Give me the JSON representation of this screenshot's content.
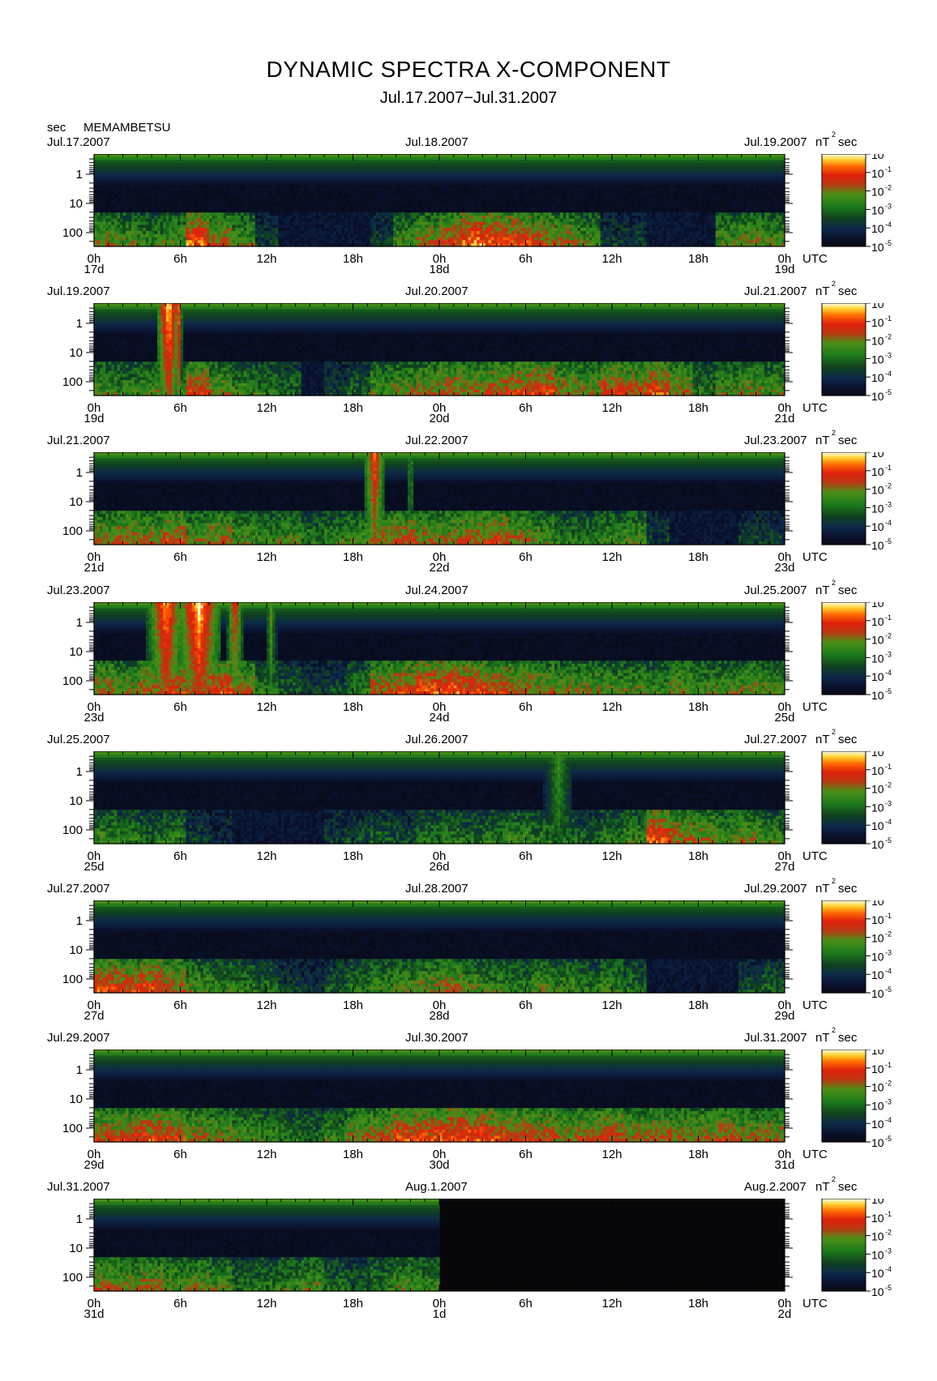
{
  "header": {
    "title": "DYNAMIC SPECTRA X-COMPONENT",
    "subtitle": "Jul.17.2007−Jul.31.2007",
    "y_unit": "sec",
    "station": "MEMAMBETSU"
  },
  "chart_data": {
    "type": "heatmap",
    "title": "DYNAMIC SPECTRA X-COMPONENT",
    "subtitle": "Jul.17.2007−Jul.31.2007",
    "station": "MEMAMBETSU",
    "ylabel": "sec",
    "yscale": "log",
    "y_ticks": [
      "1",
      "10",
      "100"
    ],
    "x_ticks": [
      "0h",
      "6h",
      "12h",
      "18h",
      "0h",
      "6h",
      "12h",
      "18h",
      "0h"
    ],
    "x_unit": "UTC",
    "colorbar": {
      "unit_base": "nT",
      "unit_exp": "2",
      "unit_suffix": "sec",
      "scale": "log",
      "labels": [
        {
          "base": "10",
          "exp": "0"
        },
        {
          "base": "10",
          "exp": "-1"
        },
        {
          "base": "10",
          "exp": "-2"
        },
        {
          "base": "10",
          "exp": "-3"
        },
        {
          "base": "10",
          "exp": "-4"
        },
        {
          "base": "10",
          "exp": "-5"
        }
      ],
      "colors": [
        "#ffffc0",
        "#ffe040",
        "#ffa000",
        "#ff3000",
        "#c81010",
        "#d02818",
        "#8a4a10",
        "#3a8a1a",
        "#1f6a1f",
        "#0e3a1e",
        "#0e2a4a",
        "#0a1633",
        "#0a0a14"
      ]
    },
    "panels": [
      {
        "date_left": "Jul.17.2007",
        "date_mid": "Jul.18.2007",
        "date_right": "Jul.19.2007",
        "day_labels": [
          "17d",
          "18d",
          "19d"
        ],
        "low_band": [
          0.65,
          0.6,
          0.55,
          0.6,
          0.9,
          0.75,
          0.6,
          0.3,
          0.2,
          0.1,
          0.05,
          0.05,
          0.3,
          0.6,
          0.7,
          0.8,
          0.95,
          0.9,
          0.85,
          0.75,
          0.7,
          0.6,
          0.3,
          0.3,
          0.1,
          0.05,
          0.1,
          0.6,
          0.65,
          0.6
        ],
        "bursts": []
      },
      {
        "date_left": "Jul.19.2007",
        "date_mid": "Jul.20.2007",
        "date_right": "Jul.21.2007",
        "day_labels": [
          "19d",
          "20d",
          "21d"
        ],
        "low_band": [
          0.6,
          0.55,
          0.6,
          0.5,
          0.8,
          0.65,
          0.55,
          0.5,
          0.45,
          0.2,
          0.3,
          0.4,
          0.6,
          0.65,
          0.7,
          0.75,
          0.7,
          0.75,
          0.8,
          0.85,
          0.7,
          0.65,
          0.8,
          0.75,
          0.85,
          0.7,
          0.5,
          0.6,
          0.65,
          0.6
        ],
        "bursts": [
          {
            "t": 5.2,
            "w": 0.9,
            "i": 1.0
          },
          {
            "t": 5.9,
            "w": 0.25,
            "i": 0.85
          }
        ]
      },
      {
        "date_left": "Jul.21.2007",
        "date_mid": "Jul.22.2007",
        "date_right": "Jul.23.2007",
        "day_labels": [
          "21d",
          "22d",
          "23d"
        ],
        "low_band": [
          0.7,
          0.75,
          0.7,
          0.8,
          0.65,
          0.7,
          0.6,
          0.55,
          0.6,
          0.5,
          0.55,
          0.6,
          0.7,
          0.75,
          0.7,
          0.7,
          0.75,
          0.8,
          0.7,
          0.6,
          0.5,
          0.5,
          0.55,
          0.6,
          0.3,
          0.1,
          0.05,
          0.15,
          0.3,
          0.3
        ],
        "bursts": [
          {
            "t": 19.5,
            "w": 0.8,
            "i": 0.85
          },
          {
            "t": 22.0,
            "w": 0.3,
            "i": 0.55
          }
        ]
      },
      {
        "date_left": "Jul.23.2007",
        "date_mid": "Jul.24.2007",
        "date_right": "Jul.25.2007",
        "day_labels": [
          "23d",
          "24d",
          "25d"
        ],
        "low_band": [
          0.7,
          0.65,
          0.75,
          0.8,
          0.75,
          0.85,
          0.7,
          0.5,
          0.4,
          0.3,
          0.35,
          0.5,
          0.75,
          0.8,
          0.9,
          0.9,
          0.85,
          0.8,
          0.75,
          0.7,
          0.65,
          0.65,
          0.6,
          0.6,
          0.55,
          0.65,
          0.6,
          0.6,
          0.65,
          0.6
        ],
        "bursts": [
          {
            "t": 5.0,
            "w": 1.3,
            "i": 0.95
          },
          {
            "t": 7.3,
            "w": 1.6,
            "i": 1.0
          },
          {
            "t": 9.8,
            "w": 0.6,
            "i": 0.8
          },
          {
            "t": 12.3,
            "w": 0.4,
            "i": 0.6
          }
        ]
      },
      {
        "date_left": "Jul.25.2007",
        "date_mid": "Jul.26.2007",
        "date_right": "Jul.27.2007",
        "day_labels": [
          "25d",
          "26d",
          "27d"
        ],
        "low_band": [
          0.55,
          0.5,
          0.45,
          0.5,
          0.3,
          0.25,
          0.2,
          0.2,
          0.15,
          0.1,
          0.3,
          0.35,
          0.4,
          0.35,
          0.45,
          0.5,
          0.45,
          0.5,
          0.55,
          0.5,
          0.45,
          0.4,
          0.5,
          0.55,
          0.9,
          0.75,
          0.7,
          0.6,
          0.65,
          0.55
        ],
        "bursts": [
          {
            "t": 32.3,
            "w": 1.0,
            "i": 0.55
          }
        ]
      },
      {
        "date_left": "Jul.27.2007",
        "date_mid": "Jul.28.2007",
        "date_right": "Jul.29.2007",
        "day_labels": [
          "27d",
          "28d",
          "29d"
        ],
        "low_band": [
          0.85,
          0.8,
          0.85,
          0.75,
          0.6,
          0.55,
          0.5,
          0.45,
          0.3,
          0.25,
          0.4,
          0.5,
          0.55,
          0.6,
          0.65,
          0.7,
          0.6,
          0.55,
          0.5,
          0.6,
          0.55,
          0.5,
          0.55,
          0.45,
          0.2,
          0.1,
          0.1,
          0.2,
          0.35,
          0.4
        ],
        "bursts": []
      },
      {
        "date_left": "Jul.29.2007",
        "date_mid": "Jul.30.2007",
        "date_right": "Jul.31.2007",
        "day_labels": [
          "29d",
          "30d",
          "31d"
        ],
        "low_band": [
          0.75,
          0.8,
          0.85,
          0.8,
          0.7,
          0.65,
          0.6,
          0.55,
          0.5,
          0.45,
          0.55,
          0.7,
          0.75,
          0.85,
          0.85,
          0.9,
          0.9,
          0.85,
          0.8,
          0.75,
          0.7,
          0.75,
          0.8,
          0.7,
          0.75,
          0.7,
          0.7,
          0.75,
          0.7,
          0.7
        ],
        "bursts": []
      },
      {
        "date_left": "Jul.31.2007",
        "date_mid": "Aug.1.2007",
        "date_right": "Aug.2.2007",
        "day_labels": [
          "31d",
          "1d",
          "2d"
        ],
        "low_band": [
          0.7,
          0.65,
          0.7,
          0.6,
          0.65,
          0.6,
          0.45,
          0.5,
          0.55,
          0.6,
          0.45,
          0.4,
          0.5,
          0.6,
          0.55
        ],
        "bursts": [],
        "data_ends_at_hour": 24
      }
    ]
  }
}
